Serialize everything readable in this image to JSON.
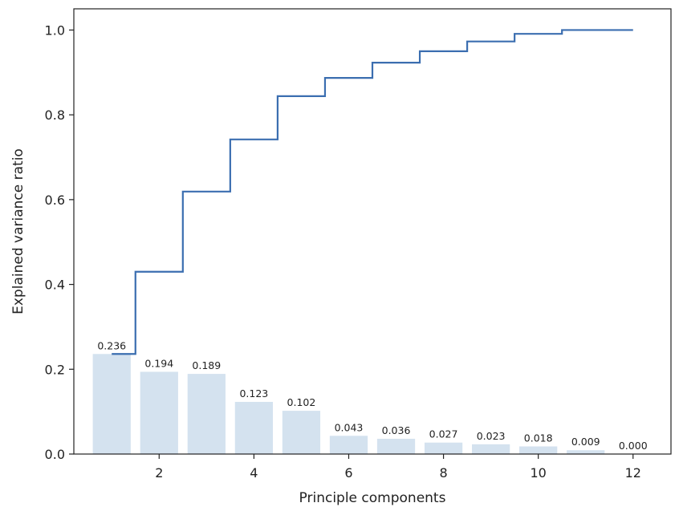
{
  "chart_data": {
    "type": "bar",
    "title": "",
    "xlabel": "Principle components",
    "ylabel": "Explained variance ratio",
    "x": [
      1,
      2,
      3,
      4,
      5,
      6,
      7,
      8,
      9,
      10,
      11,
      12
    ],
    "values": [
      0.236,
      0.194,
      0.189,
      0.123,
      0.102,
      0.043,
      0.036,
      0.027,
      0.023,
      0.018,
      0.009,
      0.0
    ],
    "data_labels": [
      "0.236",
      "0.194",
      "0.189",
      "0.123",
      "0.102",
      "0.043",
      "0.036",
      "0.027",
      "0.023",
      "0.018",
      "0.009",
      "0.000"
    ],
    "cumulative": [
      0.236,
      0.43,
      0.619,
      0.742,
      0.844,
      0.887,
      0.923,
      0.95,
      0.973,
      0.991,
      1.0,
      1.0
    ],
    "xlim": [
      0.2,
      12.8
    ],
    "ylim": [
      0,
      1.05
    ],
    "xticks": [
      2,
      4,
      6,
      8,
      10,
      12
    ],
    "xtick_labels": [
      "2",
      "4",
      "6",
      "8",
      "10",
      "12"
    ],
    "yticks": [
      0.0,
      0.2,
      0.4,
      0.6,
      0.8,
      1.0
    ],
    "ytick_labels": [
      "0.0",
      "0.2",
      "0.4",
      "0.6",
      "0.8",
      "1.0"
    ],
    "grid": false,
    "colors": {
      "bars": "#d4e2ef",
      "step_line": "#3b6eb0",
      "axes": "#222222"
    }
  }
}
